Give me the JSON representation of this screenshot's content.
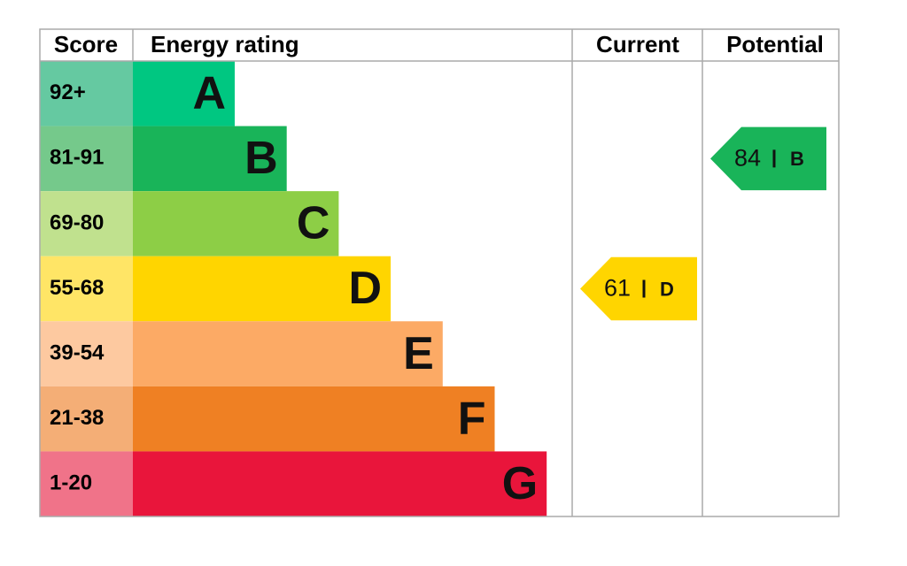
{
  "header": {
    "score": "Score",
    "rating": "Energy rating",
    "current": "Current",
    "potential": "Potential"
  },
  "bands": [
    {
      "score": "92+",
      "letter": "A",
      "color": "#00c781",
      "score_color": "#65c9a1"
    },
    {
      "score": "81-91",
      "letter": "B",
      "color": "#19b459",
      "score_color": "#75c98b"
    },
    {
      "score": "69-80",
      "letter": "C",
      "color": "#8dce46",
      "score_color": "#c0e18e"
    },
    {
      "score": "55-68",
      "letter": "D",
      "color": "#ffd500",
      "score_color": "#ffe566"
    },
    {
      "score": "39-54",
      "letter": "E",
      "color": "#fcaa65",
      "score_color": "#fdc9a0"
    },
    {
      "score": "21-38",
      "letter": "F",
      "color": "#ef8023",
      "score_color": "#f4ae76"
    },
    {
      "score": "1-20",
      "letter": "G",
      "color": "#e9153b",
      "score_color": "#f07389"
    }
  ],
  "current": {
    "value": 61,
    "letter": "D"
  },
  "potential": {
    "value": 84,
    "letter": "B"
  }
}
